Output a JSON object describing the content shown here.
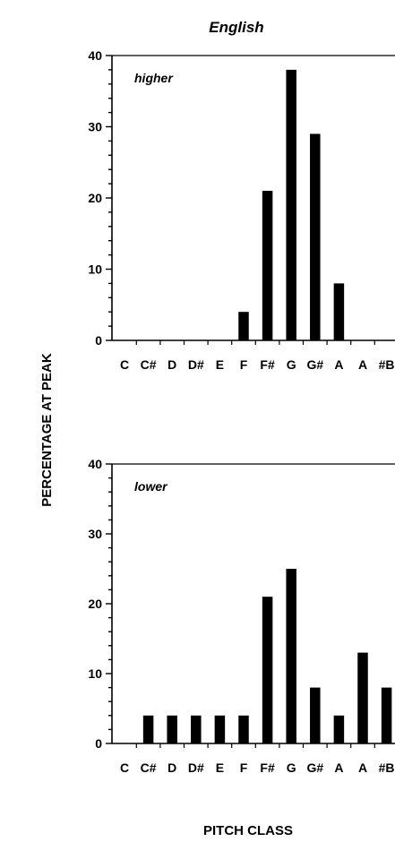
{
  "title": "English",
  "ylabel": "PERCENTAGE AT PEAK",
  "xlabel": "PITCH CLASS",
  "chart_data": [
    {
      "type": "bar",
      "panel_label": "higher",
      "categories": [
        "C",
        "C#",
        "D",
        "D#",
        "E",
        "F",
        "F#",
        "G",
        "G#",
        "A",
        "A#",
        "B"
      ],
      "category_labels": [
        "C",
        "C#",
        "D",
        "D#",
        "E",
        "F",
        "F#",
        "G",
        "G#",
        "A",
        "A",
        "#B"
      ],
      "values": [
        0,
        0,
        0,
        0,
        0,
        4,
        21,
        38,
        29,
        8,
        0,
        0
      ],
      "ylim": [
        0,
        40
      ],
      "yticks": [
        0,
        10,
        20,
        30,
        40
      ],
      "color": "#000000"
    },
    {
      "type": "bar",
      "panel_label": "lower",
      "categories": [
        "C",
        "C#",
        "D",
        "D#",
        "E",
        "F",
        "F#",
        "G",
        "G#",
        "A",
        "A#",
        "B"
      ],
      "category_labels": [
        "C",
        "C#",
        "D",
        "D#",
        "E",
        "F",
        "F#",
        "G",
        "G#",
        "A",
        "A",
        "#B"
      ],
      "values": [
        0,
        4,
        4,
        4,
        4,
        4,
        21,
        25,
        8,
        4,
        13,
        8
      ],
      "ylim": [
        0,
        40
      ],
      "yticks": [
        0,
        10,
        20,
        30,
        40
      ],
      "color": "#000000"
    }
  ]
}
